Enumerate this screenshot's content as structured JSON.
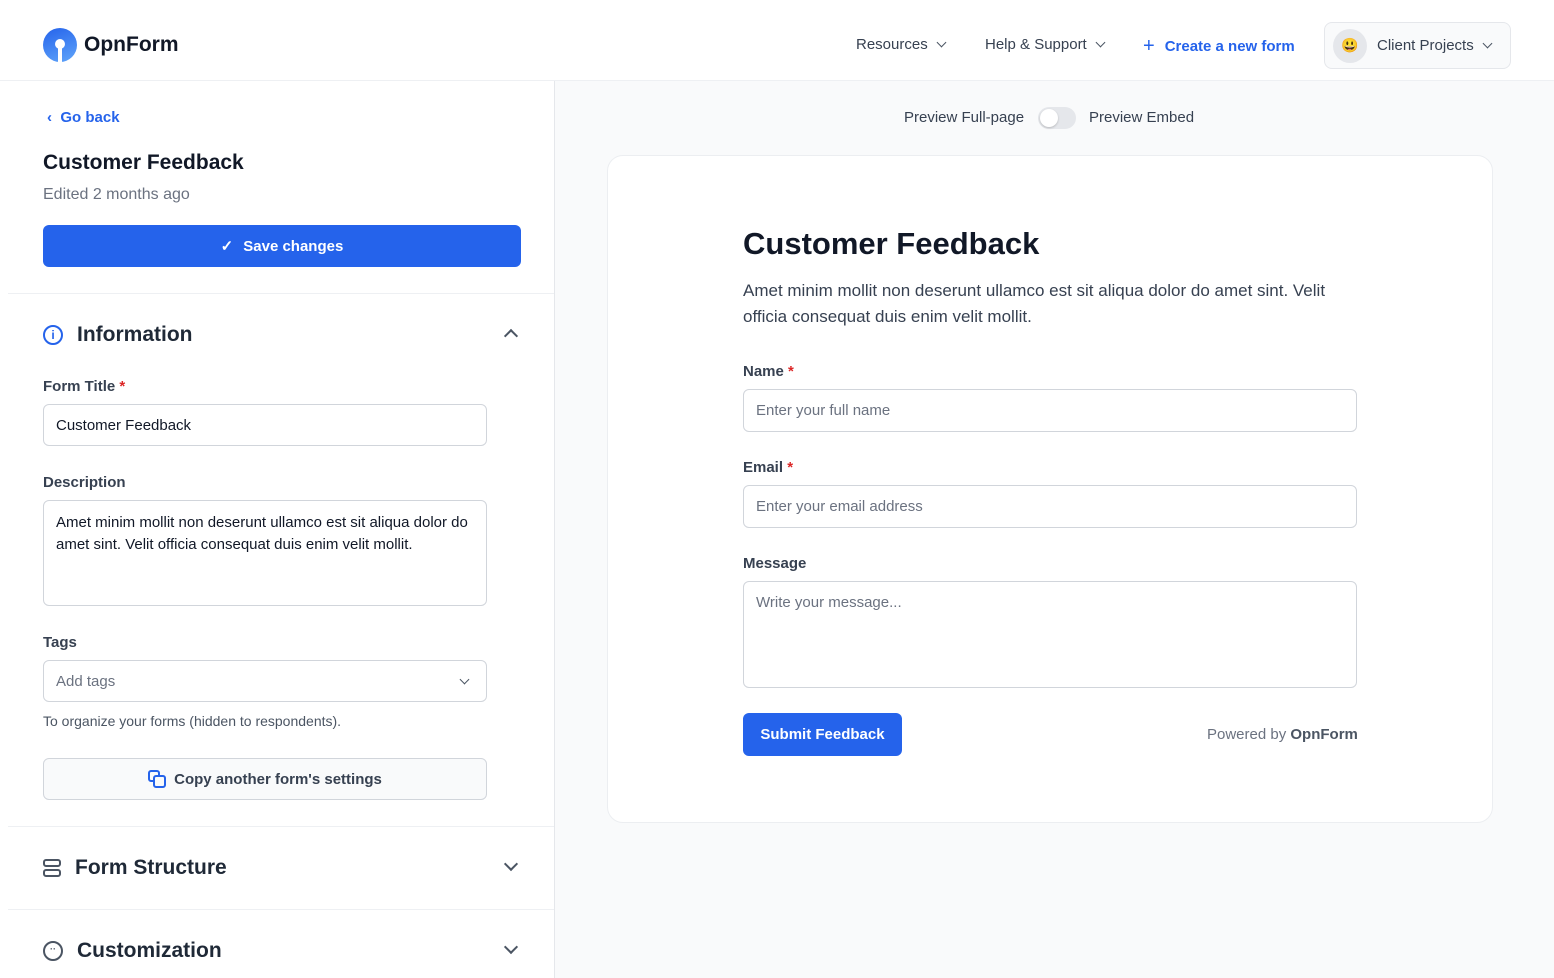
{
  "header": {
    "brand": "OpnForm",
    "nav": [
      {
        "label": "Resources"
      },
      {
        "label": "Help & Support"
      }
    ],
    "create_label": "Create a new form",
    "workspace": {
      "emoji": "😃",
      "name": "Client Projects"
    }
  },
  "sidebar": {
    "back_label": "Go back",
    "form_title": "Customer Feedback",
    "edited": "Edited 2 months ago",
    "save_label": "Save changes",
    "information": {
      "title": "Information",
      "title_label": "Form Title",
      "title_value": "Customer Feedback",
      "description_label": "Description",
      "description_value": "Amet minim mollit non deserunt ullamco est sit aliqua dolor do amet sint. Velit officia consequat duis enim velit mollit.",
      "tags_label": "Tags",
      "tags_placeholder": "Add tags",
      "tags_help": "To organize your forms (hidden to respondents).",
      "copy_label": "Copy another form's settings"
    },
    "sections": [
      {
        "title": "Form Structure"
      },
      {
        "title": "Customization"
      }
    ]
  },
  "preview": {
    "fullpage_label": "Preview Full-page",
    "embed_label": "Preview Embed",
    "embed_enabled": false,
    "form": {
      "title": "Customer Feedback",
      "description": "Amet minim mollit non deserunt ullamco est sit aliqua dolor do amet sint. Velit officia consequat duis enim velit mollit.",
      "fields": [
        {
          "label": "Name",
          "required": "*",
          "placeholder": "Enter your full name"
        },
        {
          "label": "Email",
          "required": "*",
          "placeholder": "Enter your email address"
        },
        {
          "label": "Message",
          "placeholder": "Write your message..."
        }
      ],
      "submit_label": "Submit Feedback",
      "powered_prefix": "Powered by",
      "powered_brand": "OpnForm"
    }
  },
  "colors": {
    "accent": "#2563eb",
    "required": "#dc2626"
  }
}
